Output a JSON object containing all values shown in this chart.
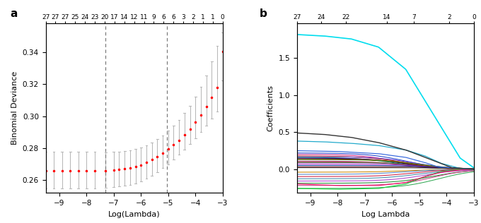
{
  "panel_a": {
    "x_min": -9.5,
    "x_max": -3.0,
    "y_min": 0.252,
    "y_max": 0.358,
    "xlabel": "Log(Lambda)",
    "ylabel": "Binomial Deviance",
    "vline1": -7.3,
    "vline2": -5.05,
    "xticks": [
      -9,
      -8,
      -7,
      -6,
      -5,
      -4,
      -3
    ],
    "yticks": [
      0.26,
      0.28,
      0.3,
      0.32,
      0.34
    ],
    "top_labels": [
      "27",
      "27",
      "27",
      "25",
      "24",
      "23",
      "20",
      "17",
      "14",
      "12",
      "11",
      "9",
      "6",
      "6",
      "3",
      "2",
      "1",
      "1",
      "0"
    ],
    "dot_x": [
      -9.5,
      -9.2,
      -8.9,
      -8.6,
      -8.3,
      -8.0,
      -7.7,
      -7.3,
      -7.0,
      -6.8,
      -6.6,
      -6.4,
      -6.2,
      -6.0,
      -5.8,
      -5.6,
      -5.4,
      -5.2,
      -5.0,
      -4.8,
      -4.6,
      -4.4,
      -4.2,
      -4.0,
      -3.8,
      -3.6,
      -3.4,
      -3.2,
      -3.0
    ],
    "dot_y": [
      0.266,
      0.266,
      0.266,
      0.266,
      0.266,
      0.266,
      0.266,
      0.266,
      0.2663,
      0.2666,
      0.267,
      0.2676,
      0.2684,
      0.2695,
      0.271,
      0.2727,
      0.2747,
      0.2769,
      0.2793,
      0.282,
      0.285,
      0.2883,
      0.292,
      0.2962,
      0.3008,
      0.3058,
      0.3118,
      0.3178,
      0.3405
    ],
    "err_lo_abs": [
      0.011,
      0.011,
      0.011,
      0.011,
      0.011,
      0.011,
      0.011,
      0.0108,
      0.0107,
      0.0106,
      0.0105,
      0.0104,
      0.0103,
      0.0101,
      0.01,
      0.0098,
      0.0096,
      0.0095,
      0.0093,
      0.0092,
      0.0092,
      0.0094,
      0.0096,
      0.01,
      0.0108,
      0.0118,
      0.0132,
      0.015,
      0.018
    ],
    "err_hi_abs": [
      0.0118,
      0.0118,
      0.0118,
      0.0118,
      0.0118,
      0.0118,
      0.0118,
      0.0115,
      0.0113,
      0.0112,
      0.0111,
      0.011,
      0.0109,
      0.0108,
      0.0108,
      0.0108,
      0.0109,
      0.0112,
      0.0115,
      0.012,
      0.0128,
      0.0136,
      0.0146,
      0.0158,
      0.0174,
      0.0196,
      0.0225,
      0.026,
      0.012
    ]
  },
  "panel_b": {
    "x_min": -9.5,
    "x_max": -3.0,
    "y_min": -0.32,
    "y_max": 1.97,
    "xlabel": "Log Lambda",
    "ylabel": "Coefficients",
    "xticks": [
      -9,
      -8,
      -7,
      -6,
      -5,
      -4,
      -3
    ],
    "yticks": [
      0.0,
      0.5,
      1.0,
      1.5
    ],
    "top_labels": [
      "27",
      "24",
      "22",
      "14",
      "7",
      "2",
      "0"
    ],
    "top_pos": [
      -9.5,
      -8.6,
      -7.7,
      -6.2,
      -5.2,
      -3.9,
      -3.0
    ]
  }
}
